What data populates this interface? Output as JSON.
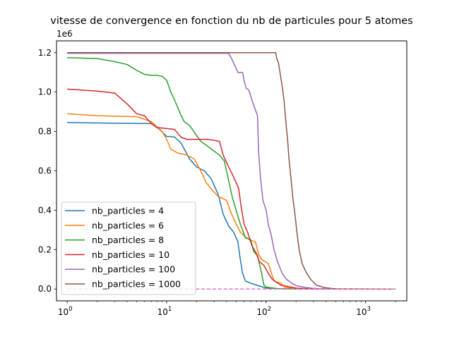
{
  "chart_data": {
    "type": "line",
    "title": "vitesse de convergence en fonction du nb de particules pour 5 atomes",
    "xlabel": "",
    "ylabel": "",
    "xscale": "log",
    "xlim": [
      0.78,
      2600
    ],
    "ylim": [
      -0.06,
      1.26
    ],
    "y_offset_label": "1e6",
    "y_ticks": [
      0.0,
      0.2,
      0.4,
      0.6,
      0.8,
      1.0,
      1.2
    ],
    "y_tick_labels": [
      "0.0",
      "0.2",
      "0.4",
      "0.6",
      "0.8",
      "1.0",
      "1.2"
    ],
    "x_ticks": [
      1,
      10,
      100,
      1000
    ],
    "x_tick_labels": [
      {
        "base": "10",
        "exp": "0"
      },
      {
        "base": "10",
        "exp": "1"
      },
      {
        "base": "10",
        "exp": "2"
      },
      {
        "base": "10",
        "exp": "3"
      }
    ],
    "grid": false,
    "legend_position": "lower-left",
    "series": [
      {
        "name": "nb_particles = 4",
        "color": "#1f77b4",
        "dashed": false,
        "points": [
          [
            1,
            0.845
          ],
          [
            3,
            0.842
          ],
          [
            7,
            0.84
          ],
          [
            8.5,
            0.81
          ],
          [
            10,
            0.775
          ],
          [
            12,
            0.772
          ],
          [
            14,
            0.74
          ],
          [
            17,
            0.66
          ],
          [
            20,
            0.62
          ],
          [
            24,
            0.6
          ],
          [
            28,
            0.56
          ],
          [
            33,
            0.48
          ],
          [
            37,
            0.38
          ],
          [
            42,
            0.32
          ],
          [
            47,
            0.29
          ],
          [
            52,
            0.24
          ],
          [
            55,
            0.15
          ],
          [
            58,
            0.08
          ],
          [
            62,
            0.04
          ],
          [
            70,
            0.03
          ],
          [
            80,
            0.02
          ],
          [
            90,
            0.012
          ],
          [
            100,
            0.005
          ],
          [
            130,
            0.002
          ],
          [
            200,
            0.0
          ],
          [
            2000,
            0.0
          ]
        ]
      },
      {
        "name": "nb_particles = 6",
        "color": "#ff7f0e",
        "dashed": false,
        "points": [
          [
            1,
            0.89
          ],
          [
            2,
            0.88
          ],
          [
            5,
            0.875
          ],
          [
            7,
            0.85
          ],
          [
            9,
            0.8
          ],
          [
            10,
            0.76
          ],
          [
            11,
            0.71
          ],
          [
            13,
            0.69
          ],
          [
            16,
            0.68
          ],
          [
            19,
            0.66
          ],
          [
            22,
            0.6
          ],
          [
            25,
            0.54
          ],
          [
            29,
            0.5
          ],
          [
            33,
            0.47
          ],
          [
            40,
            0.45
          ],
          [
            45,
            0.38
          ],
          [
            50,
            0.33
          ],
          [
            55,
            0.29
          ],
          [
            60,
            0.27
          ],
          [
            68,
            0.25
          ],
          [
            78,
            0.24
          ],
          [
            85,
            0.17
          ],
          [
            90,
            0.15
          ],
          [
            105,
            0.13
          ],
          [
            115,
            0.07
          ],
          [
            120,
            0.04
          ],
          [
            140,
            0.03
          ],
          [
            155,
            0.008
          ],
          [
            200,
            0.002
          ],
          [
            2000,
            0.0
          ]
        ]
      },
      {
        "name": "nb_particles = 8",
        "color": "#2ca02c",
        "dashed": false,
        "points": [
          [
            1,
            1.175
          ],
          [
            2,
            1.17
          ],
          [
            3,
            1.155
          ],
          [
            4,
            1.14
          ],
          [
            5,
            1.11
          ],
          [
            6,
            1.09
          ],
          [
            7,
            1.085
          ],
          [
            8,
            1.085
          ],
          [
            9,
            1.08
          ],
          [
            10,
            1.06
          ],
          [
            11,
            1.0
          ],
          [
            12,
            0.96
          ],
          [
            14,
            0.88
          ],
          [
            15,
            0.85
          ],
          [
            17,
            0.83
          ],
          [
            20,
            0.78
          ],
          [
            22,
            0.75
          ],
          [
            25,
            0.73
          ],
          [
            30,
            0.7
          ],
          [
            34,
            0.68
          ],
          [
            38,
            0.65
          ],
          [
            42,
            0.55
          ],
          [
            46,
            0.46
          ],
          [
            50,
            0.4
          ],
          [
            55,
            0.33
          ],
          [
            62,
            0.26
          ],
          [
            70,
            0.25
          ],
          [
            75,
            0.19
          ],
          [
            82,
            0.17
          ],
          [
            90,
            0.08
          ],
          [
            95,
            0.02
          ],
          [
            100,
            0.01
          ],
          [
            130,
            0.002
          ],
          [
            200,
            0.0
          ],
          [
            2000,
            0.0
          ]
        ]
      },
      {
        "name": "nb_particles = 10",
        "color": "#d62728",
        "dashed": false,
        "points": [
          [
            1,
            1.015
          ],
          [
            2,
            1.005
          ],
          [
            3,
            0.995
          ],
          [
            4,
            0.94
          ],
          [
            5,
            0.89
          ],
          [
            6,
            0.88
          ],
          [
            7,
            0.84
          ],
          [
            8,
            0.82
          ],
          [
            10,
            0.815
          ],
          [
            12,
            0.81
          ],
          [
            14,
            0.77
          ],
          [
            16,
            0.76
          ],
          [
            25,
            0.76
          ],
          [
            30,
            0.755
          ],
          [
            34,
            0.75
          ],
          [
            37,
            0.68
          ],
          [
            42,
            0.62
          ],
          [
            46,
            0.58
          ],
          [
            50,
            0.54
          ],
          [
            53,
            0.51
          ],
          [
            56,
            0.42
          ],
          [
            60,
            0.33
          ],
          [
            65,
            0.29
          ],
          [
            72,
            0.22
          ],
          [
            80,
            0.18
          ],
          [
            85,
            0.14
          ],
          [
            95,
            0.12
          ],
          [
            105,
            0.08
          ],
          [
            115,
            0.05
          ],
          [
            140,
            0.02
          ],
          [
            200,
            0.005
          ],
          [
            300,
            0.0
          ],
          [
            2000,
            0.0
          ]
        ]
      },
      {
        "name": "nb_particles = 100",
        "color": "#9467bd",
        "dashed": false,
        "points": [
          [
            1,
            1.197
          ],
          [
            20,
            1.197
          ],
          [
            42,
            1.197
          ],
          [
            45,
            1.17
          ],
          [
            48,
            1.14
          ],
          [
            52,
            1.1
          ],
          [
            58,
            1.1
          ],
          [
            60,
            1.06
          ],
          [
            63,
            1.02
          ],
          [
            67,
            1.01
          ],
          [
            72,
            0.96
          ],
          [
            78,
            0.91
          ],
          [
            82,
            0.88
          ],
          [
            84,
            0.7
          ],
          [
            88,
            0.56
          ],
          [
            93,
            0.45
          ],
          [
            100,
            0.4
          ],
          [
            106,
            0.32
          ],
          [
            112,
            0.28
          ],
          [
            120,
            0.2
          ],
          [
            130,
            0.14
          ],
          [
            145,
            0.08
          ],
          [
            160,
            0.05
          ],
          [
            180,
            0.03
          ],
          [
            200,
            0.018
          ],
          [
            250,
            0.008
          ],
          [
            300,
            0.003
          ],
          [
            400,
            0.0
          ],
          [
            2000,
            0.0
          ]
        ]
      },
      {
        "name": "nb_particles = 1000",
        "color": "#8c564b",
        "dashed": false,
        "points": [
          [
            1,
            1.2
          ],
          [
            100,
            1.2
          ],
          [
            125,
            1.2
          ],
          [
            128,
            1.17
          ],
          [
            133,
            1.15
          ],
          [
            138,
            1.1
          ],
          [
            143,
            1.05
          ],
          [
            148,
            1.0
          ],
          [
            152,
            0.95
          ],
          [
            158,
            0.85
          ],
          [
            165,
            0.75
          ],
          [
            170,
            0.66
          ],
          [
            178,
            0.56
          ],
          [
            185,
            0.47
          ],
          [
            195,
            0.38
          ],
          [
            205,
            0.28
          ],
          [
            215,
            0.2
          ],
          [
            230,
            0.13
          ],
          [
            250,
            0.09
          ],
          [
            280,
            0.05
          ],
          [
            320,
            0.02
          ],
          [
            380,
            0.008
          ],
          [
            450,
            0.003
          ],
          [
            550,
            0.0
          ],
          [
            2000,
            0.0
          ]
        ]
      },
      {
        "name": "",
        "color": "#e377c2",
        "dashed": true,
        "points": [
          [
            1,
            0.0
          ],
          [
            2000,
            0.0
          ]
        ]
      }
    ]
  }
}
